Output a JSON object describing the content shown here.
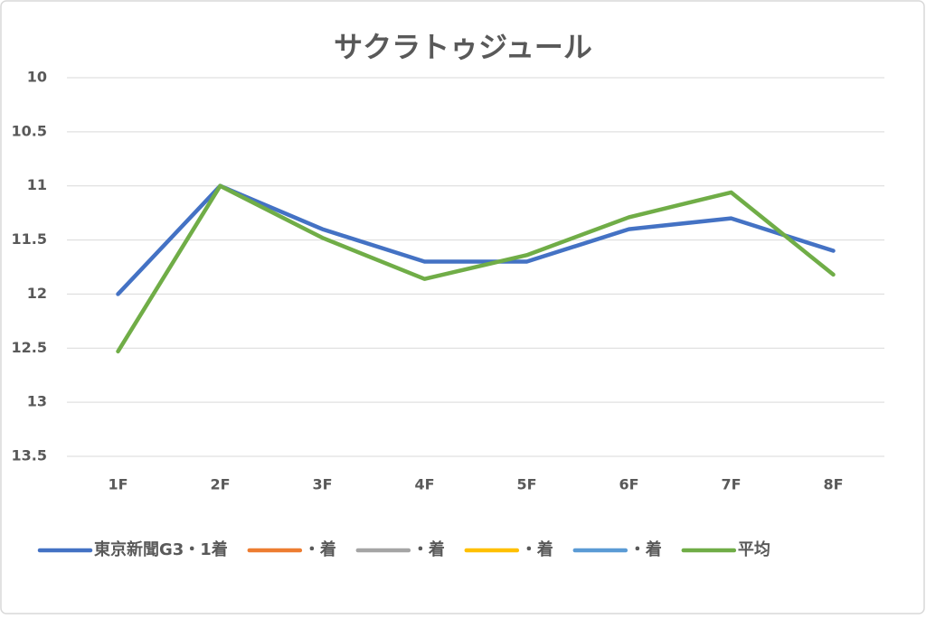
{
  "chart_data": {
    "type": "line",
    "title": "サクラトゥジュール",
    "categories": [
      "1F",
      "2F",
      "3F",
      "4F",
      "5F",
      "6F",
      "7F",
      "8F"
    ],
    "series": [
      {
        "name": "東京新聞G3・1着",
        "color": "#4472c4",
        "values": [
          12.0,
          11.0,
          11.4,
          11.7,
          11.7,
          11.4,
          11.3,
          11.6
        ]
      },
      {
        "name": "・着",
        "color": "#ed7d31",
        "values": [
          null,
          null,
          null,
          null,
          null,
          null,
          null,
          null
        ]
      },
      {
        "name": "・着",
        "color": "#a5a5a5",
        "values": [
          null,
          null,
          null,
          null,
          null,
          null,
          null,
          null
        ]
      },
      {
        "name": "・着",
        "color": "#ffc000",
        "values": [
          null,
          null,
          null,
          null,
          null,
          null,
          null,
          null
        ]
      },
      {
        "name": "・着",
        "color": "#5b9bd5",
        "values": [
          null,
          null,
          null,
          null,
          null,
          null,
          null,
          null
        ]
      },
      {
        "name": "平均",
        "color": "#70ad47",
        "values": [
          12.53,
          11.0,
          11.48,
          11.86,
          11.64,
          11.29,
          11.06,
          11.82
        ]
      }
    ],
    "ylim": [
      10,
      13.5
    ],
    "y_inverted": true,
    "yticks": [
      10,
      10.5,
      11,
      11.5,
      12,
      12.5,
      13,
      13.5
    ],
    "grid": true,
    "legend": "bottom"
  }
}
